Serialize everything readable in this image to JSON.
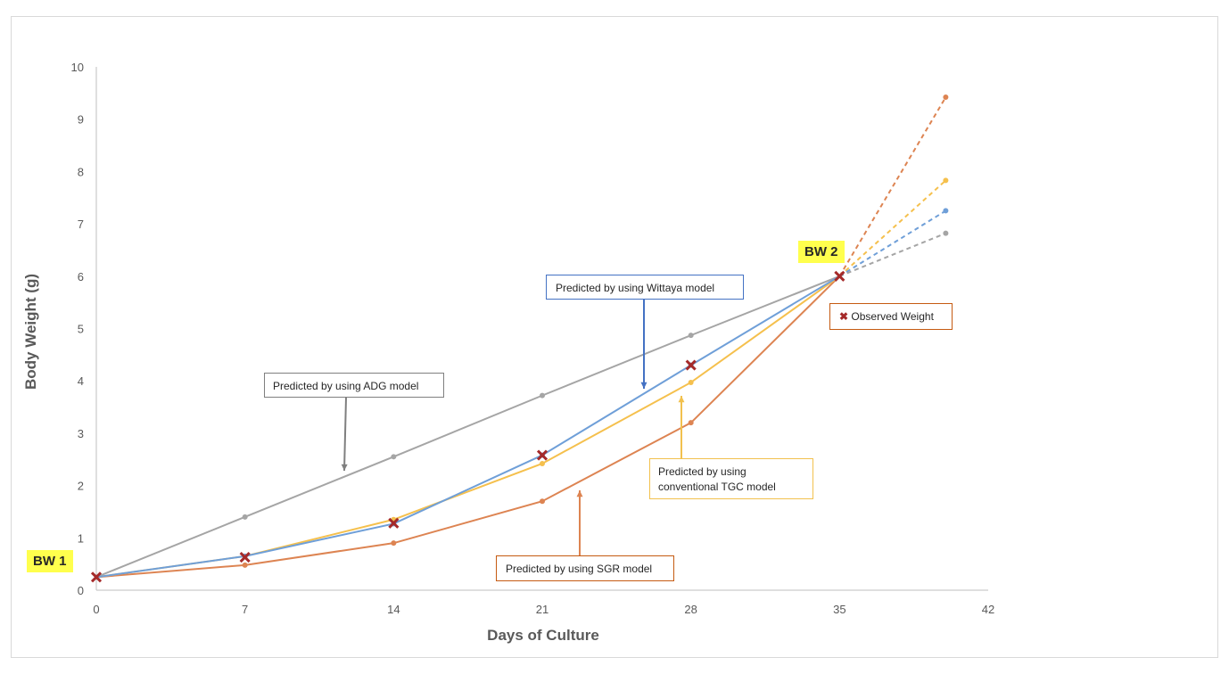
{
  "chart_data": {
    "type": "line",
    "xlabel": "Days of Culture",
    "ylabel": "Body Weight (g)",
    "xlim": [
      0,
      42
    ],
    "ylim": [
      0,
      10
    ],
    "xticks": [
      0,
      7,
      14,
      21,
      28,
      35,
      42
    ],
    "yticks": [
      0,
      1,
      2,
      3,
      4,
      5,
      6,
      7,
      8,
      9,
      10
    ],
    "grid": false,
    "series": [
      {
        "key": "adg",
        "color": "#a5a5a5",
        "solid": {
          "x": [
            0,
            7,
            14,
            21,
            28,
            35
          ],
          "y": [
            0.25,
            1.4,
            2.55,
            3.72,
            4.87,
            6.0
          ]
        },
        "projection": {
          "x": [
            35,
            40
          ],
          "y": [
            6.0,
            6.82
          ]
        }
      },
      {
        "key": "sgr",
        "color": "#dd8452",
        "solid": {
          "x": [
            0,
            7,
            14,
            21,
            28,
            35
          ],
          "y": [
            0.25,
            0.48,
            0.9,
            1.7,
            3.2,
            6.0
          ]
        },
        "projection": {
          "x": [
            35,
            40
          ],
          "y": [
            6.0,
            9.42
          ]
        }
      },
      {
        "key": "tgc",
        "color": "#f5c04d",
        "solid": {
          "x": [
            0,
            7,
            14,
            21,
            28,
            35
          ],
          "y": [
            0.25,
            0.65,
            1.35,
            2.42,
            3.97,
            6.0
          ]
        },
        "projection": {
          "x": [
            35,
            40
          ],
          "y": [
            6.0,
            7.83
          ]
        }
      },
      {
        "key": "wittaya",
        "color": "#6f9fd8",
        "solid": {
          "x": [
            0,
            7,
            14,
            21,
            28,
            35
          ],
          "y": [
            0.25,
            0.65,
            1.27,
            2.58,
            4.3,
            6.0
          ]
        },
        "projection": {
          "x": [
            35,
            40
          ],
          "y": [
            6.0,
            7.25
          ]
        }
      }
    ],
    "observed": {
      "color": "#a52a2a",
      "x": [
        0,
        7,
        14,
        21,
        28,
        35
      ],
      "y": [
        0.25,
        0.63,
        1.28,
        2.58,
        4.3,
        6.0
      ]
    },
    "annotations": {
      "adg": "Predicted by using ADG model",
      "wittaya": "Predicted by using Wittaya model",
      "tgc_line1": "Predicted by using",
      "tgc_line2": "conventional TGC model",
      "sgr": "Predicted by using SGR model",
      "observed": "Observed Weight",
      "bw1": "BW 1",
      "bw2": "BW 2"
    }
  }
}
